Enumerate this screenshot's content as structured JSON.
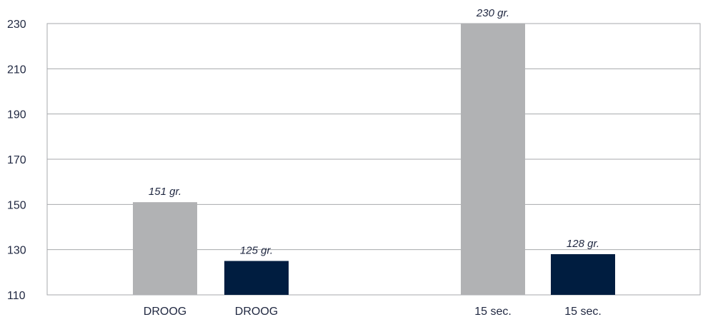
{
  "chart_data": {
    "type": "bar",
    "title": "",
    "xlabel": "",
    "ylabel": "",
    "ylim": [
      110,
      230
    ],
    "yticks": [
      "110",
      "130",
      "150",
      "170",
      "190",
      "210",
      "230"
    ],
    "grid": true,
    "bars": [
      {
        "category": "DROOG",
        "value": 151,
        "label": "151 gr.",
        "color": "#b1b2b4"
      },
      {
        "category": "DROOG",
        "value": 125,
        "label": "125 gr.",
        "color": "#001d40"
      },
      {
        "category": "15 sec.",
        "value": 230,
        "label": "230 gr.",
        "color": "#b1b2b4"
      },
      {
        "category": "15 sec.",
        "value": 128,
        "label": "128 gr.",
        "color": "#001d40"
      }
    ]
  },
  "colors": {
    "grid": "#a7a9ac",
    "frame": "#a7a9ac",
    "text": "#1f2740"
  }
}
